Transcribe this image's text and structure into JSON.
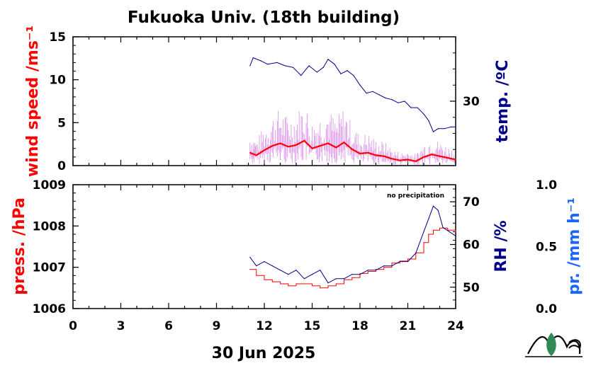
{
  "title": "Fukuoka Univ. (18th building)",
  "date_label": "30 Jun 2025",
  "note": "no precipitation",
  "colors": {
    "wind": "#ff0000",
    "wind_raw": "#cc66dd",
    "temp": "#00008b",
    "press": "#ff0000",
    "rh": "#00008b",
    "precip": "#1a66ff",
    "logo": "#2e8b57"
  },
  "chart_data": [
    {
      "type": "line",
      "title": "",
      "xlim": [
        0,
        24
      ],
      "x_ticks": [
        "0",
        "3",
        "6",
        "9",
        "12",
        "15",
        "18",
        "21",
        "24"
      ],
      "left_axis": {
        "label": "wind speed /ms⁻¹",
        "ylim": [
          0,
          15
        ],
        "ticks": [
          "0",
          "5",
          "10",
          "15"
        ]
      },
      "right_axis": {
        "label": "temp. /ºC",
        "ylim": [
          26,
          34
        ],
        "ticks": [
          "30"
        ]
      },
      "series": [
        {
          "name": "wind speed",
          "axis": "left",
          "color": "#ff0000",
          "x": [
            11.1,
            11.5,
            12.0,
            12.5,
            13.0,
            13.5,
            14.0,
            14.5,
            15.0,
            15.5,
            16.0,
            16.5,
            17.0,
            17.5,
            18.0,
            18.5,
            19.0,
            19.5,
            20.0,
            20.5,
            21.0,
            21.5,
            22.0,
            22.5,
            23.0,
            23.5,
            24.0
          ],
          "values": [
            1.5,
            1.2,
            1.8,
            2.3,
            2.6,
            2.2,
            2.4,
            2.9,
            2.0,
            2.3,
            2.6,
            2.1,
            2.7,
            1.9,
            1.4,
            1.5,
            1.2,
            1.1,
            0.8,
            0.6,
            0.7,
            0.5,
            1.0,
            1.3,
            1.1,
            0.9,
            0.7
          ]
        },
        {
          "name": "temperature",
          "axis": "right",
          "color": "#00008b",
          "x": [
            11.1,
            11.3,
            11.8,
            12.2,
            12.8,
            13.3,
            13.8,
            14.3,
            14.8,
            15.3,
            15.7,
            16.0,
            16.4,
            16.8,
            17.2,
            17.6,
            18.0,
            18.4,
            18.8,
            19.2,
            19.6,
            20.0,
            20.4,
            20.8,
            21.2,
            21.6,
            22.0,
            22.3,
            22.6,
            22.9,
            23.3,
            23.7,
            24.0
          ],
          "values": [
            32.2,
            32.7,
            32.5,
            32.3,
            32.4,
            32.2,
            32.1,
            31.6,
            32.2,
            31.8,
            32.1,
            32.6,
            32.3,
            31.7,
            31.9,
            31.6,
            31.0,
            30.5,
            30.6,
            30.4,
            30.2,
            30.1,
            29.9,
            30.0,
            29.6,
            29.6,
            29.2,
            28.8,
            28.1,
            28.3,
            28.3,
            28.4,
            28.4
          ]
        }
      ]
    },
    {
      "type": "line",
      "title": "",
      "xlim": [
        0,
        24
      ],
      "x_ticks": [
        "0",
        "3",
        "6",
        "9",
        "12",
        "15",
        "18",
        "21",
        "24"
      ],
      "left_axis": {
        "label": "press. /hPa",
        "ylim": [
          1006,
          1009
        ],
        "ticks": [
          "1006",
          "1007",
          "1008",
          "1009"
        ]
      },
      "right_axis": {
        "label": "RH /%",
        "ylim": [
          45,
          74
        ],
        "ticks": [
          "50",
          "60",
          "70"
        ]
      },
      "far_right_axis": {
        "label": "pr. /mm h⁻¹",
        "ylim": [
          0.0,
          1.0
        ],
        "ticks": [
          "0.0",
          "0.5",
          "1.0"
        ]
      },
      "series": [
        {
          "name": "pressure",
          "axis": "left",
          "color": "#ff0000",
          "x": [
            11.1,
            11.5,
            12.0,
            12.5,
            13.0,
            13.5,
            14.0,
            14.5,
            15.0,
            15.5,
            16.0,
            16.5,
            17.0,
            17.5,
            18.0,
            18.5,
            19.0,
            19.5,
            20.0,
            20.5,
            21.0,
            21.5,
            22.0,
            22.3,
            22.6,
            23.0,
            23.5,
            24.0
          ],
          "values": [
            1006.95,
            1006.8,
            1006.7,
            1006.65,
            1006.6,
            1006.55,
            1006.6,
            1006.6,
            1006.55,
            1006.5,
            1006.55,
            1006.6,
            1006.7,
            1006.75,
            1006.85,
            1006.9,
            1006.95,
            1007.0,
            1007.1,
            1007.15,
            1007.2,
            1007.35,
            1007.6,
            1007.8,
            1007.9,
            1007.95,
            1007.9,
            1007.85
          ]
        },
        {
          "name": "relative humidity",
          "axis": "right",
          "color": "#00008b",
          "x": [
            11.1,
            11.5,
            12.0,
            12.5,
            13.0,
            13.5,
            14.0,
            14.5,
            15.0,
            15.5,
            16.0,
            16.5,
            17.0,
            17.5,
            18.0,
            18.5,
            19.0,
            19.5,
            20.0,
            20.5,
            21.0,
            21.5,
            22.0,
            22.3,
            22.6,
            22.9,
            23.2,
            23.6,
            24.0
          ],
          "values": [
            57,
            55,
            56,
            55,
            54,
            53,
            54,
            52,
            53,
            54,
            51,
            52,
            52,
            53,
            53,
            54,
            54,
            55,
            55,
            56,
            56,
            58,
            63,
            66,
            69,
            68,
            64,
            63,
            62
          ]
        }
      ]
    }
  ]
}
